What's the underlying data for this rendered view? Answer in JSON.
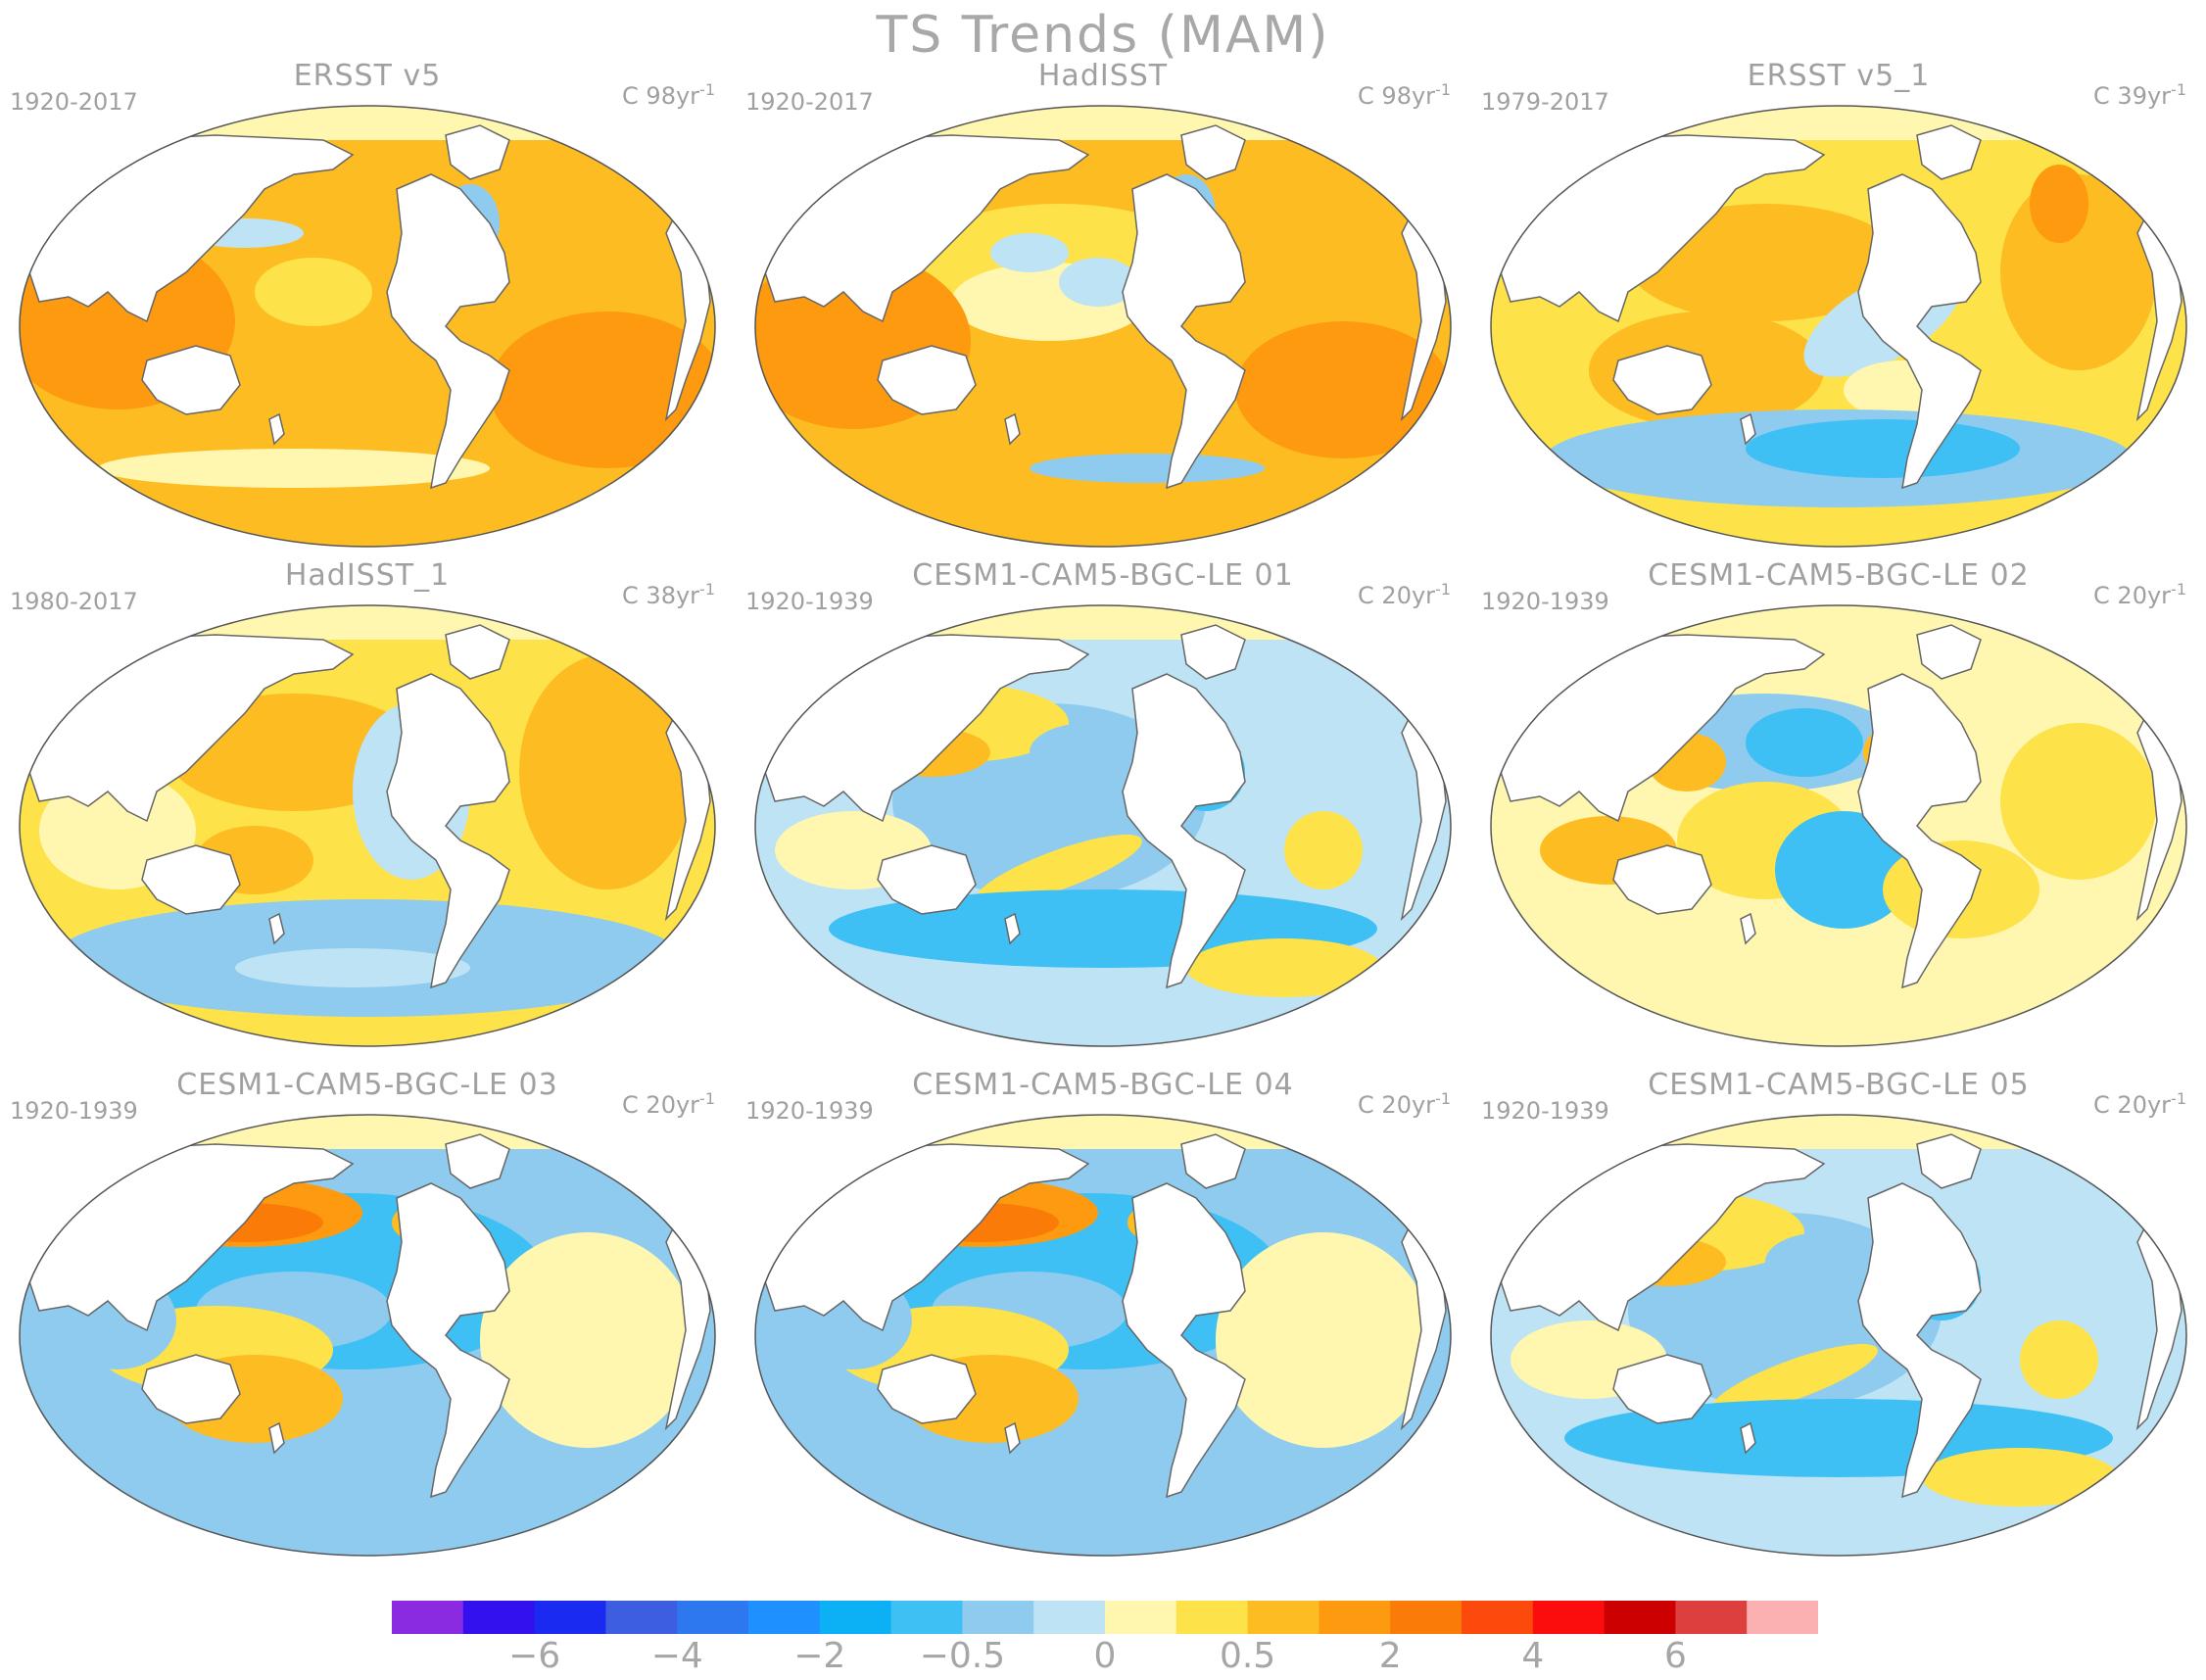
{
  "figure": {
    "title": "TS Trends (MAM)"
  },
  "panels": [
    {
      "title": "ERSST v5",
      "period": "1920-2017",
      "units": "C 98yr",
      "units_exp": "-1",
      "pattern": "warm_strong"
    },
    {
      "title": "HadISST",
      "period": "1920-2017",
      "units": "C 98yr",
      "units_exp": "-1",
      "pattern": "warm_patchy"
    },
    {
      "title": "ERSST v5_1",
      "period": "1979-2017",
      "units": "C 39yr",
      "units_exp": "-1",
      "pattern": "warm_cool_south"
    },
    {
      "title": "HadISST_1",
      "period": "1980-2017",
      "units": "C 38yr",
      "units_exp": "-1",
      "pattern": "warm_mixed"
    },
    {
      "title": "CESM1-CAM5-BGC-LE 01",
      "period": "1920-1939",
      "units": "C 20yr",
      "units_exp": "-1",
      "pattern": "cool_mixed"
    },
    {
      "title": "CESM1-CAM5-BGC-LE 02",
      "period": "1920-1939",
      "units": "C 20yr",
      "units_exp": "-1",
      "pattern": "mixed"
    },
    {
      "title": "CESM1-CAM5-BGC-LE 03",
      "period": "1920-1939",
      "units": "C 20yr",
      "units_exp": "-1",
      "pattern": "cool_kuroshio"
    },
    {
      "title": "CESM1-CAM5-BGC-LE 04",
      "period": "1920-1939",
      "units": "C 20yr",
      "units_exp": "-1",
      "pattern": "cool_kuroshio"
    },
    {
      "title": "CESM1-CAM5-BGC-LE 05",
      "period": "1920-1939",
      "units": "C 20yr",
      "units_exp": "-1",
      "pattern": "cool_mixed"
    }
  ],
  "colorbar": {
    "colors": [
      "#8a2be2",
      "#3311ee",
      "#1a2af0",
      "#3d5ee0",
      "#2e78ef",
      "#1e90ff",
      "#0cb0f5",
      "#3fc0f5",
      "#8ecbee",
      "#bde3f5",
      "#fff7b0",
      "#fde24a",
      "#fdbc21",
      "#fd9a0f",
      "#fa7b08",
      "#fb4a0c",
      "#fb0d0d",
      "#cc0000",
      "#dd3f3f",
      "#fbb1b1"
    ],
    "labels": [
      "−6",
      "−4",
      "−2",
      "−0.5",
      "0",
      "0.5",
      "2",
      "4",
      "6"
    ],
    "label_boundaries": [
      2,
      4,
      6,
      8,
      10,
      12,
      14,
      16,
      18
    ]
  },
  "legend_colors": {
    "land": "#ffffff",
    "coast": "#666666",
    "frame": "#555555",
    "arctic": "#fff7b0"
  }
}
